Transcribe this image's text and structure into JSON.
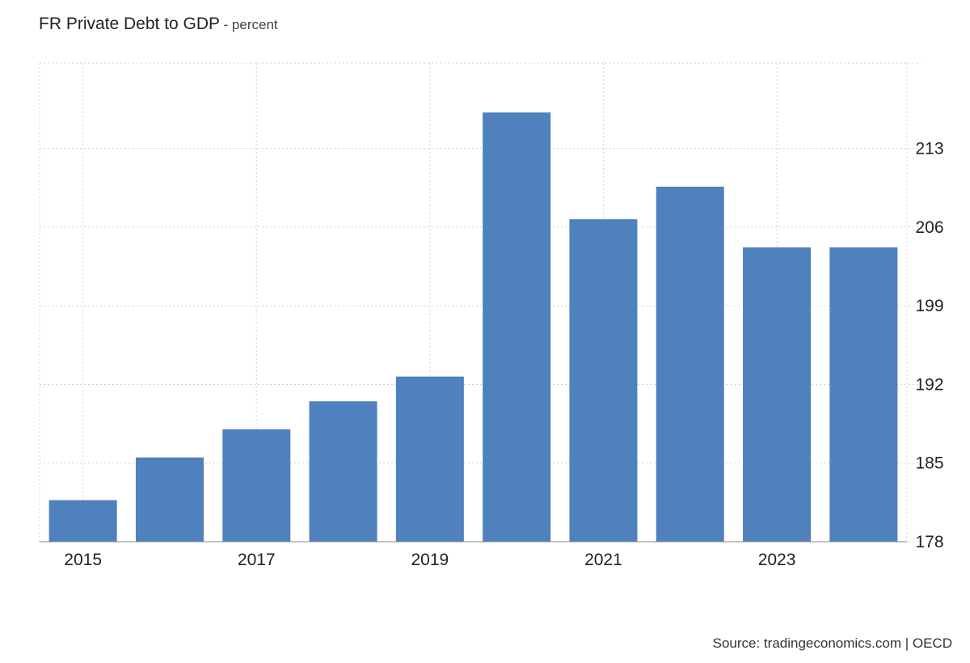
{
  "chart": {
    "title": "FR Private Debt to GDP",
    "subtitle": "- percent"
  },
  "source_text": "Source: tradingeconomics.com | OECD",
  "colors": {
    "bar": "#4e81bd",
    "grid": "#d0d0d0",
    "axis": "#888888"
  },
  "chart_data": {
    "type": "bar",
    "title": "FR Private Debt to GDP",
    "subtitle": "- percent",
    "xlabel": "",
    "ylabel": "",
    "categories": [
      "2015",
      "2016",
      "2017",
      "2018",
      "2019",
      "2020",
      "2021",
      "2022",
      "2023",
      "2024"
    ],
    "values": [
      181.7,
      185.5,
      188.0,
      190.5,
      192.7,
      216.2,
      206.7,
      209.6,
      204.2,
      204.2
    ],
    "x_tick_labels": [
      "2015",
      "2017",
      "2019",
      "2021",
      "2023"
    ],
    "y_ticks": [
      178,
      185,
      192,
      199,
      206,
      213
    ],
    "ylim": [
      178,
      220.6
    ],
    "y_axis_position": "right",
    "grid": true,
    "legend": "none"
  }
}
